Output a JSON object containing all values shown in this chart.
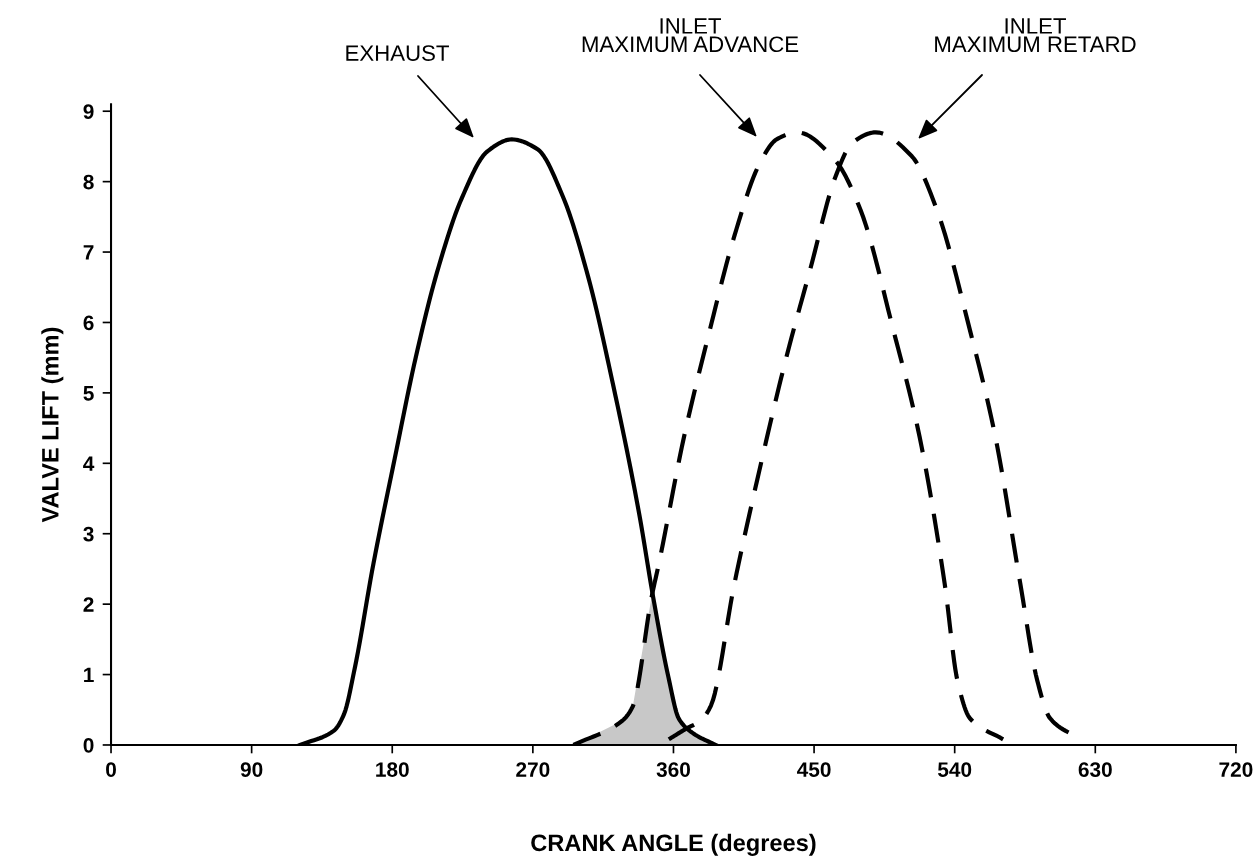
{
  "chart_data": {
    "type": "line",
    "xlabel": "CRANK ANGLE (degrees)",
    "ylabel": "VALVE LIFT (mm)",
    "xlim": [
      0,
      720
    ],
    "xticks": [
      0,
      90,
      180,
      270,
      360,
      450,
      540,
      630,
      720
    ],
    "ylim": [
      0,
      9.1
    ],
    "yticks": [
      0,
      1,
      2,
      3,
      4,
      5,
      6,
      7,
      8,
      9
    ],
    "grid": false,
    "legend": false,
    "marker": "none",
    "series": [
      {
        "type": "area",
        "color": "#c8c8c8",
        "x": [
          296,
          327,
          334,
          346,
          347,
          356.7,
          363.5,
          373,
          387
        ],
        "values": [
          0,
          0.34,
          0.55,
          2.1,
          2.1,
          0.97,
          0.37,
          0.16,
          0
        ]
      },
      {
        "color": "#000000",
        "line_style": "solid",
        "x": [
          121,
          142.5,
          149,
          156,
          168,
          181.6,
          195,
          208.5,
          224.6,
          240.9,
          256.5,
          273,
          289,
          305.5,
          321.6,
          338,
          347,
          356.7,
          363.5,
          373,
          387
        ],
        "values": [
          0,
          0.2,
          0.43,
          1.09,
          2.58,
          4.07,
          5.5,
          6.7,
          7.77,
          8.43,
          8.6,
          8.46,
          7.8,
          6.64,
          5.09,
          3.29,
          2.1,
          0.97,
          0.37,
          0.16,
          0
        ]
      },
      {
        "color": "#000000",
        "line_style": "dashed",
        "x": [
          296,
          327,
          334,
          346,
          350.7,
          366.7,
          383,
          399,
          415,
          426,
          439.4,
          463.6,
          479.7,
          501,
          517.5,
          533.6,
          541.7,
          549.7,
          571
        ],
        "values": [
          0,
          0.34,
          0.55,
          2.1,
          2.58,
          4.37,
          5.87,
          7.23,
          8.25,
          8.6,
          8.7,
          8.3,
          7.6,
          5.87,
          4.38,
          2.29,
          0.92,
          0.38,
          0.08
        ]
      },
      {
        "color": "#000000",
        "line_style": "dashed",
        "x": [
          357,
          368,
          377.6,
          384,
          399,
          415,
          431.5,
          447.6,
          463.7,
          474.4,
          489.5,
          512.6,
          528.6,
          550,
          566,
          582,
          592.8,
          601,
          621
        ],
        "values": [
          0.08,
          0.23,
          0.35,
          0.56,
          2.29,
          3.9,
          5.44,
          6.76,
          8.07,
          8.55,
          8.7,
          8.36,
          7.6,
          5.87,
          4.38,
          2.29,
          0.92,
          0.38,
          0.08
        ]
      }
    ],
    "annotations": [
      "EXHAUST",
      "INLET\nMAXIMUM ADVANCE",
      "INLET\nMAXIMUM RETARD"
    ]
  }
}
